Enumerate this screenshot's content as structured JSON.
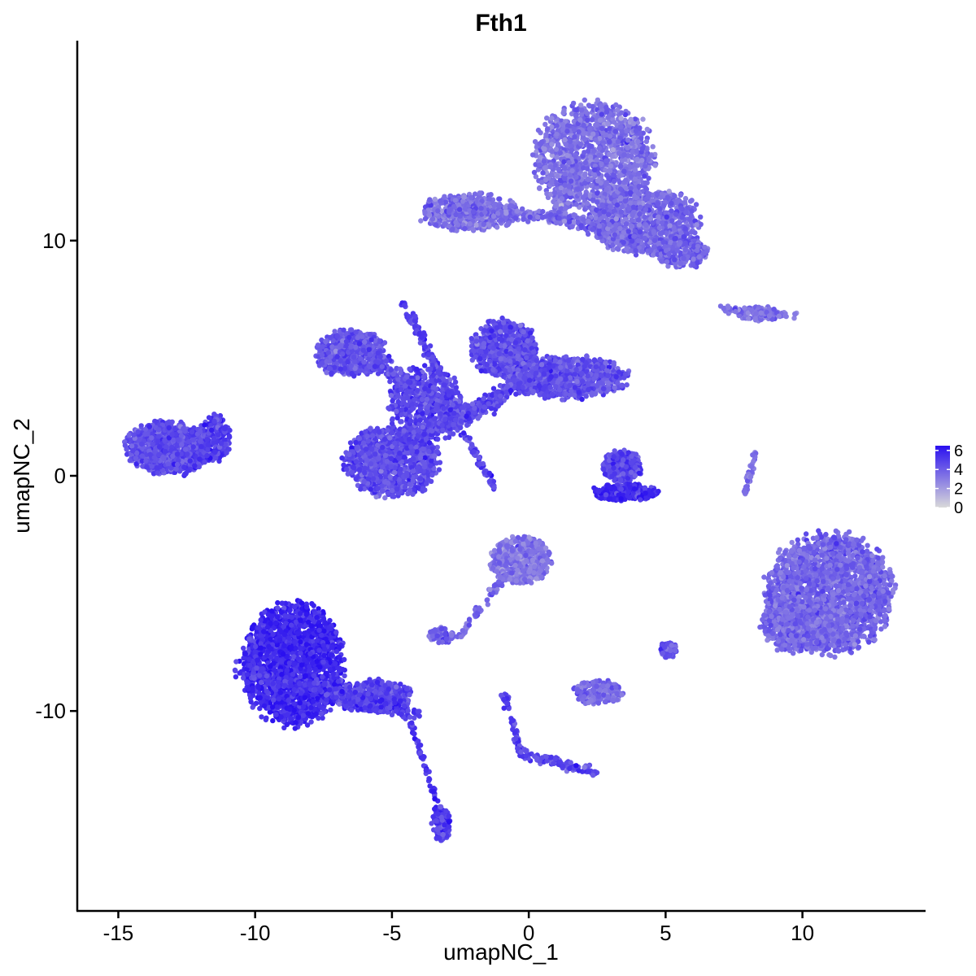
{
  "chart_data": {
    "type": "scatter",
    "title": "Fth1",
    "xlabel": "umapNC_1",
    "ylabel": "umapNC_2",
    "xlim": [
      -16.5,
      14.5
    ],
    "ylim": [
      -18.5,
      18.5
    ],
    "x_ticks": [
      -15,
      -10,
      -5,
      0,
      5,
      10
    ],
    "x_tick_labels": [
      "-15",
      "-10",
      "-5",
      "0",
      "5",
      "10"
    ],
    "y_ticks": [
      -10,
      0,
      10
    ],
    "y_tick_labels": [
      "-10",
      "0",
      "10"
    ],
    "color_scale": {
      "low_color": "#d9d9d9",
      "high_color": "#2a10f0",
      "min": 0,
      "max": 6.5,
      "ticks": [
        0,
        2,
        4,
        6
      ],
      "tick_labels": [
        "0",
        "2",
        "4",
        "6"
      ],
      "position": "right"
    },
    "grid": false,
    "clusters": [
      {
        "name": "c1",
        "kind": "blob",
        "cx": 2.4,
        "cy": 13.5,
        "rx": 2.2,
        "ry": 2.3,
        "n": 1400,
        "expr": 3.4
      },
      {
        "name": "c2",
        "kind": "blob",
        "cx": 4.2,
        "cy": 10.8,
        "rx": 2.0,
        "ry": 1.4,
        "n": 900,
        "expr": 3.6
      },
      {
        "name": "c3",
        "kind": "blob",
        "cx": -2.2,
        "cy": 11.2,
        "rx": 1.8,
        "ry": 0.8,
        "n": 500,
        "expr": 3.4
      },
      {
        "name": "c4",
        "kind": "blob",
        "cx": 5.6,
        "cy": 9.5,
        "rx": 0.9,
        "ry": 0.7,
        "n": 250,
        "expr": 3.8
      },
      {
        "name": "c5",
        "kind": "blob",
        "cx": -6.5,
        "cy": 5.2,
        "rx": 1.3,
        "ry": 1.0,
        "n": 550,
        "expr": 4.3
      },
      {
        "name": "c6",
        "kind": "blob",
        "cx": -0.9,
        "cy": 5.4,
        "rx": 1.2,
        "ry": 1.2,
        "n": 650,
        "expr": 4.6
      },
      {
        "name": "c7",
        "kind": "blob",
        "cx": 1.4,
        "cy": 4.2,
        "rx": 2.2,
        "ry": 0.9,
        "n": 800,
        "expr": 4.4
      },
      {
        "name": "c8",
        "kind": "blob",
        "cx": -5.0,
        "cy": 0.6,
        "rx": 1.7,
        "ry": 1.5,
        "n": 1000,
        "expr": 4.6
      },
      {
        "name": "c9",
        "kind": "blob",
        "cx": -3.8,
        "cy": 3.0,
        "rx": 1.4,
        "ry": 1.6,
        "n": 500,
        "expr": 4.8
      },
      {
        "name": "c10",
        "kind": "blob",
        "cx": -13.2,
        "cy": 1.2,
        "rx": 1.5,
        "ry": 1.1,
        "n": 900,
        "expr": 4.6
      },
      {
        "name": "c11",
        "kind": "blob",
        "cx": -11.5,
        "cy": 1.6,
        "rx": 0.6,
        "ry": 1.0,
        "n": 180,
        "expr": 4.9
      },
      {
        "name": "c12",
        "kind": "blob",
        "cx": 3.4,
        "cy": 0.4,
        "rx": 0.7,
        "ry": 0.7,
        "n": 260,
        "expr": 4.7
      },
      {
        "name": "c13",
        "kind": "blob",
        "cx": 3.5,
        "cy": -0.7,
        "rx": 1.2,
        "ry": 0.35,
        "n": 300,
        "expr": 5.6
      },
      {
        "name": "c14",
        "kind": "blob",
        "cx": 11.0,
        "cy": -5.0,
        "rx": 2.3,
        "ry": 2.5,
        "n": 2200,
        "expr": 3.7
      },
      {
        "name": "c15",
        "kind": "blob",
        "cx": 9.8,
        "cy": -6.3,
        "rx": 1.3,
        "ry": 1.2,
        "n": 500,
        "expr": 3.7
      },
      {
        "name": "c16",
        "kind": "blob",
        "cx": -0.3,
        "cy": -3.6,
        "rx": 1.1,
        "ry": 1.0,
        "n": 450,
        "expr": 3.2
      },
      {
        "name": "c17",
        "kind": "blob",
        "cx": -8.6,
        "cy": -8.0,
        "rx": 1.8,
        "ry": 2.6,
        "n": 1700,
        "expr": 5.8
      },
      {
        "name": "c18",
        "kind": "blob",
        "cx": -5.7,
        "cy": -9.4,
        "rx": 1.4,
        "ry": 0.7,
        "n": 500,
        "expr": 4.8
      },
      {
        "name": "c19",
        "kind": "blob",
        "cx": -3.2,
        "cy": -14.8,
        "rx": 0.35,
        "ry": 0.8,
        "n": 120,
        "expr": 5.0
      },
      {
        "name": "c20",
        "kind": "blob",
        "cx": 2.5,
        "cy": -9.2,
        "rx": 0.9,
        "ry": 0.5,
        "n": 200,
        "expr": 3.6
      },
      {
        "name": "c21",
        "kind": "blob",
        "cx": -3.2,
        "cy": -6.8,
        "rx": 0.5,
        "ry": 0.35,
        "n": 80,
        "expr": 3.8
      },
      {
        "name": "c22",
        "kind": "blob",
        "cx": 5.1,
        "cy": -7.4,
        "rx": 0.3,
        "ry": 0.35,
        "n": 50,
        "expr": 4.2
      },
      {
        "name": "c23",
        "kind": "blob",
        "cx": 8.4,
        "cy": 6.9,
        "rx": 0.8,
        "ry": 0.3,
        "n": 100,
        "expr": 3.3
      },
      {
        "name": "s1",
        "kind": "line",
        "x0": -3.0,
        "y0": 11.3,
        "x1": 1.0,
        "y1": 11.0,
        "n": 200,
        "w": 0.25,
        "expr": 3.5
      },
      {
        "name": "s2",
        "kind": "line",
        "x0": 1.0,
        "y0": 11.0,
        "x1": 1.5,
        "y1": 13.2,
        "n": 150,
        "w": 0.3,
        "expr": 3.4
      },
      {
        "name": "s3",
        "kind": "line",
        "x0": 1.0,
        "y0": 11.0,
        "x1": 4.2,
        "y1": 10.0,
        "n": 150,
        "w": 0.3,
        "expr": 3.6
      },
      {
        "name": "s4",
        "kind": "line",
        "x0": -5.8,
        "y0": 5.0,
        "x1": -2.4,
        "y1": 2.5,
        "n": 250,
        "w": 0.35,
        "expr": 4.6
      },
      {
        "name": "s5",
        "kind": "line",
        "x0": -2.4,
        "y0": 2.5,
        "x1": 0.5,
        "y1": 4.5,
        "n": 250,
        "w": 0.35,
        "expr": 4.7
      },
      {
        "name": "s6",
        "kind": "line",
        "x0": -4.6,
        "y0": 7.4,
        "x1": -2.6,
        "y1": 2.8,
        "n": 150,
        "w": 0.15,
        "expr": 4.9
      },
      {
        "name": "s7",
        "kind": "line",
        "x0": -2.4,
        "y0": 1.8,
        "x1": -1.2,
        "y1": -0.6,
        "n": 60,
        "w": 0.1,
        "expr": 4.9
      },
      {
        "name": "s8",
        "kind": "line",
        "x0": -2.4,
        "y0": 2.5,
        "x1": -4.5,
        "y1": 1.5,
        "n": 150,
        "w": 0.3,
        "expr": 4.8
      },
      {
        "name": "s9",
        "kind": "line",
        "x0": 8.3,
        "y0": 1.1,
        "x1": 7.9,
        "y1": -0.8,
        "n": 40,
        "w": 0.1,
        "expr": 3.5
      },
      {
        "name": "s10",
        "kind": "line",
        "x0": 7.1,
        "y0": 7.1,
        "x1": 9.8,
        "y1": 6.8,
        "n": 80,
        "w": 0.15,
        "expr": 3.3
      },
      {
        "name": "s11",
        "kind": "line",
        "x0": -0.9,
        "y0": -4.2,
        "x1": -2.5,
        "y1": -6.8,
        "n": 60,
        "w": 0.15,
        "expr": 3.6
      },
      {
        "name": "s12",
        "kind": "line",
        "x0": -10.5,
        "y0": -8.2,
        "x1": -4.0,
        "y1": -10.2,
        "n": 300,
        "w": 0.4,
        "expr": 5.1
      },
      {
        "name": "s13",
        "kind": "line",
        "x0": -4.3,
        "y0": -10.5,
        "x1": -3.3,
        "y1": -14.2,
        "n": 60,
        "w": 0.1,
        "expr": 5.2
      },
      {
        "name": "s14",
        "kind": "line",
        "x0": -0.9,
        "y0": -9.3,
        "x1": -0.3,
        "y1": -11.8,
        "n": 60,
        "w": 0.1,
        "expr": 4.8
      },
      {
        "name": "s15",
        "kind": "line",
        "x0": -0.3,
        "y0": -11.8,
        "x1": 2.5,
        "y1": -12.6,
        "n": 100,
        "w": 0.2,
        "expr": 4.8
      },
      {
        "name": "s16",
        "kind": "line",
        "x0": -12.6,
        "y0": 0.0,
        "x1": -11.0,
        "y1": 1.4,
        "n": 50,
        "w": 0.1,
        "expr": 5.0
      }
    ]
  }
}
